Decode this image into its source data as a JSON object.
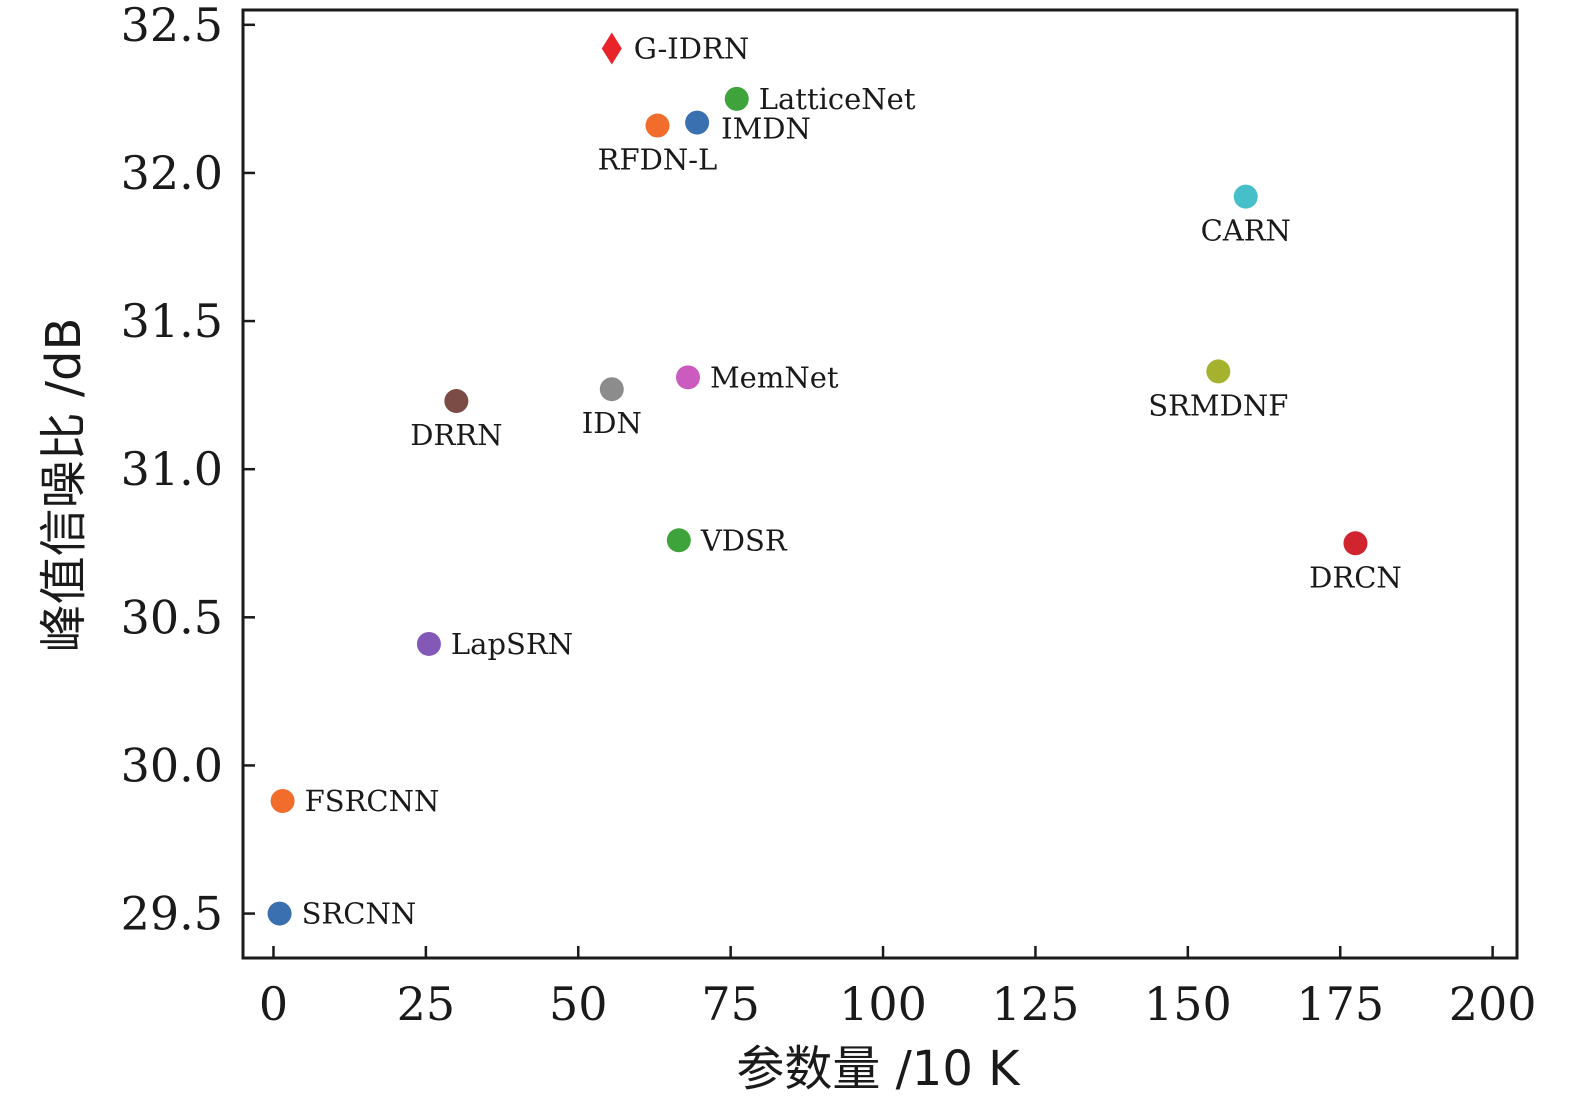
{
  "chart_data": {
    "type": "scatter",
    "xlabel": "参数量 /10 K",
    "ylabel": "峰值信噪比 /dB",
    "xlim": [
      -5,
      204
    ],
    "ylim": [
      29.35,
      32.55
    ],
    "xticks": [
      0,
      25,
      50,
      75,
      100,
      125,
      150,
      175,
      200
    ],
    "xtick_labels": [
      "0",
      "25",
      "50",
      "75",
      "100",
      "125",
      "150",
      "175",
      "200"
    ],
    "yticks": [
      29.5,
      30.0,
      30.5,
      31.0,
      31.5,
      32.0,
      32.5
    ],
    "ytick_labels": [
      "29.5",
      "30.0",
      "30.5",
      "31.0",
      "31.5",
      "32.0",
      "32.5"
    ],
    "grid": false,
    "legend": "none",
    "points": [
      {
        "label": "G-IDRN",
        "x": 55.5,
        "y": 32.42,
        "color": "#e8232a",
        "marker": "diamond",
        "label_pos": "right"
      },
      {
        "label": "LatticeNet",
        "x": 76,
        "y": 32.25,
        "color": "#3ea33a",
        "marker": "circle",
        "label_pos": "right"
      },
      {
        "label": "IMDN",
        "x": 69.5,
        "y": 32.17,
        "color": "#3a6fb0",
        "marker": "circle",
        "label_pos": "right-below"
      },
      {
        "label": "RFDN-L",
        "x": 63,
        "y": 32.16,
        "color": "#f26c2b",
        "marker": "circle",
        "label_pos": "below"
      },
      {
        "label": "CARN",
        "x": 159.5,
        "y": 31.92,
        "color": "#47bfc9",
        "marker": "circle",
        "label_pos": "below"
      },
      {
        "label": "MemNet",
        "x": 68,
        "y": 31.31,
        "color": "#cc5bbf",
        "marker": "circle",
        "label_pos": "right"
      },
      {
        "label": "SRMDNF",
        "x": 155,
        "y": 31.33,
        "color": "#a5b22d",
        "marker": "circle",
        "label_pos": "below"
      },
      {
        "label": "IDN",
        "x": 55.5,
        "y": 31.27,
        "color": "#8c8c8c",
        "marker": "circle",
        "label_pos": "below"
      },
      {
        "label": "DRRN",
        "x": 30,
        "y": 31.23,
        "color": "#7b4b46",
        "marker": "circle",
        "label_pos": "below"
      },
      {
        "label": "VDSR",
        "x": 66.5,
        "y": 30.76,
        "color": "#3ea33a",
        "marker": "circle",
        "label_pos": "right"
      },
      {
        "label": "DRCN",
        "x": 177.5,
        "y": 30.75,
        "color": "#d0242e",
        "marker": "circle",
        "label_pos": "below"
      },
      {
        "label": "LapSRN",
        "x": 25.5,
        "y": 30.41,
        "color": "#8358b6",
        "marker": "circle",
        "label_pos": "right"
      },
      {
        "label": "FSRCNN",
        "x": 1.5,
        "y": 29.88,
        "color": "#f26c2b",
        "marker": "circle",
        "label_pos": "right"
      },
      {
        "label": "SRCNN",
        "x": 1,
        "y": 29.5,
        "color": "#3a6fb0",
        "marker": "circle",
        "label_pos": "right"
      }
    ]
  }
}
